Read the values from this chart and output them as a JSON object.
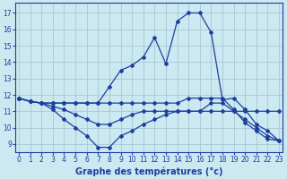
{
  "xlabel": "Graphe des températures (°c)",
  "bg_color": "#cce8f0",
  "grid_color": "#aaccd8",
  "line_color": "#1c3fa0",
  "x_ticks": [
    0,
    1,
    2,
    3,
    4,
    5,
    6,
    7,
    8,
    9,
    10,
    11,
    12,
    13,
    14,
    15,
    16,
    17,
    18,
    19,
    20,
    21,
    22,
    23
  ],
  "y_ticks": [
    9,
    10,
    11,
    12,
    13,
    14,
    15,
    16,
    17
  ],
  "ylim": [
    8.5,
    17.6
  ],
  "xlim": [
    -0.3,
    23.3
  ],
  "lines": [
    [
      11.8,
      11.6,
      11.5,
      11.5,
      11.5,
      11.5,
      11.5,
      11.5,
      12.5,
      13.5,
      13.8,
      14.3,
      15.5,
      13.9,
      16.5,
      17.0,
      17.0,
      15.8,
      11.7,
      11.8,
      11.1,
      10.2,
      9.8,
      9.2
    ],
    [
      11.8,
      11.6,
      11.5,
      11.5,
      11.5,
      11.5,
      11.5,
      11.5,
      11.5,
      11.5,
      11.5,
      11.5,
      11.5,
      11.5,
      11.5,
      11.8,
      11.8,
      11.8,
      11.8,
      11.1,
      10.3,
      9.8,
      9.3,
      9.2
    ],
    [
      11.8,
      11.6,
      11.5,
      11.3,
      11.1,
      10.8,
      10.5,
      10.2,
      10.2,
      10.5,
      10.8,
      11.0,
      11.0,
      11.0,
      11.0,
      11.0,
      11.0,
      11.5,
      11.5,
      11.0,
      10.5,
      10.0,
      9.5,
      9.2
    ],
    [
      11.8,
      11.6,
      11.5,
      11.1,
      10.5,
      10.0,
      9.5,
      8.8,
      8.8,
      9.5,
      9.8,
      10.2,
      10.5,
      10.8,
      11.0,
      11.0,
      11.0,
      11.0,
      11.0,
      11.0,
      11.0,
      11.0,
      11.0,
      11.0
    ]
  ]
}
